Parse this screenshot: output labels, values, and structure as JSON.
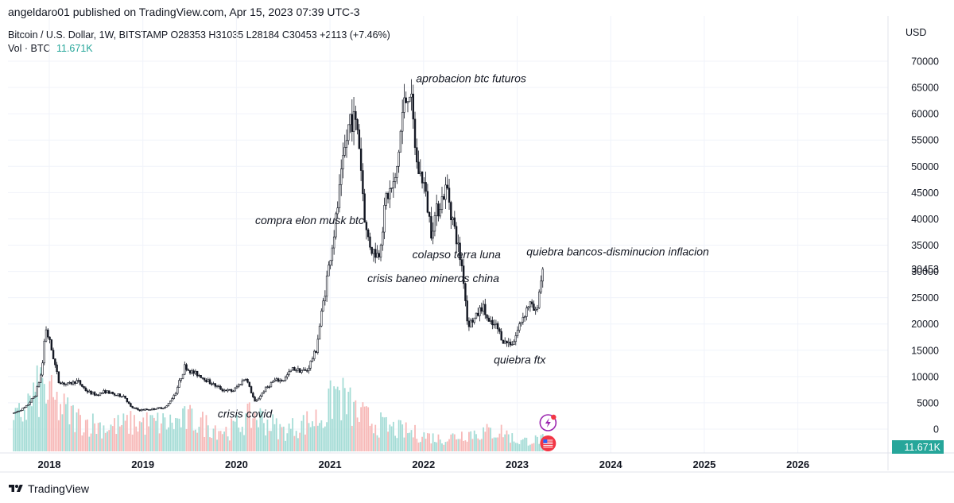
{
  "header": {
    "publisher": "angeldaro01 published on TradingView.com, Apr 15, 2023 07:39 UTC-3",
    "symbol_line": "Bitcoin / U.S. Dollar, 1W, BITSTAMP  O28353  H31035  L28184  C30453  +2113 (+7.46%)",
    "volume_label": "Vol · BTC",
    "volume_value": "11.671K"
  },
  "price_axis": {
    "currency": "USD"
  },
  "footer": {
    "brand": "TradingView"
  },
  "colors": {
    "up": "#131722",
    "down": "#131722",
    "vol_up": "#a5dcd6",
    "vol_down": "#f7b9b8",
    "vol_badge": "#26a69a",
    "grid": "#f0f3fa"
  },
  "icons": [
    "lightning-icon",
    "us-flag-icon"
  ],
  "chart_data": {
    "type": "candlestick",
    "x_ticks": [
      "2018",
      "2019",
      "2020",
      "2021",
      "2022",
      "2023",
      "2024",
      "2025",
      "2026"
    ],
    "y_ticks": [
      0,
      5000,
      10000,
      15000,
      20000,
      25000,
      30000,
      35000,
      40000,
      45000,
      50000,
      55000,
      60000,
      65000,
      70000
    ],
    "ylim": [
      0,
      70000
    ],
    "last_price": "30453",
    "last_volume": "11.671K",
    "price_path": [
      [
        2017.62,
        3000
      ],
      [
        2017.75,
        4200
      ],
      [
        2017.85,
        6500
      ],
      [
        2017.92,
        11000
      ],
      [
        2017.96,
        19500
      ],
      [
        2018.04,
        14000
      ],
      [
        2018.1,
        9000
      ],
      [
        2018.2,
        8500
      ],
      [
        2018.3,
        9200
      ],
      [
        2018.4,
        7200
      ],
      [
        2018.5,
        6500
      ],
      [
        2018.6,
        7200
      ],
      [
        2018.7,
        6500
      ],
      [
        2018.8,
        6300
      ],
      [
        2018.87,
        4200
      ],
      [
        2018.96,
        3600
      ],
      [
        2019.1,
        3800
      ],
      [
        2019.25,
        4200
      ],
      [
        2019.35,
        7000
      ],
      [
        2019.45,
        12000
      ],
      [
        2019.5,
        11000
      ],
      [
        2019.6,
        10300
      ],
      [
        2019.75,
        8500
      ],
      [
        2019.85,
        7500
      ],
      [
        2019.96,
        7200
      ],
      [
        2020.1,
        9800
      ],
      [
        2020.2,
        5000
      ],
      [
        2020.3,
        7500
      ],
      [
        2020.4,
        9200
      ],
      [
        2020.5,
        9300
      ],
      [
        2020.6,
        11500
      ],
      [
        2020.75,
        11000
      ],
      [
        2020.85,
        15000
      ],
      [
        2020.96,
        28000
      ],
      [
        2021.05,
        38000
      ],
      [
        2021.15,
        52000
      ],
      [
        2021.22,
        60000
      ],
      [
        2021.3,
        57000
      ],
      [
        2021.38,
        38000
      ],
      [
        2021.45,
        34000
      ],
      [
        2021.52,
        33000
      ],
      [
        2021.6,
        44000
      ],
      [
        2021.7,
        47000
      ],
      [
        2021.78,
        61000
      ],
      [
        2021.85,
        65000
      ],
      [
        2021.93,
        50000
      ],
      [
        2022.0,
        47000
      ],
      [
        2022.08,
        38000
      ],
      [
        2022.15,
        42000
      ],
      [
        2022.25,
        46000
      ],
      [
        2022.33,
        38000
      ],
      [
        2022.42,
        30000
      ],
      [
        2022.47,
        20000
      ],
      [
        2022.55,
        21000
      ],
      [
        2022.63,
        23500
      ],
      [
        2022.7,
        20000
      ],
      [
        2022.78,
        19500
      ],
      [
        2022.86,
        16500
      ],
      [
        2022.96,
        16500
      ],
      [
        2023.05,
        21000
      ],
      [
        2023.13,
        24000
      ],
      [
        2023.2,
        22000
      ],
      [
        2023.25,
        28000
      ],
      [
        2023.29,
        30453
      ]
    ],
    "volume_path": [
      [
        2017.62,
        0.7
      ],
      [
        2017.92,
        1.6
      ],
      [
        2018.05,
        1.2
      ],
      [
        2018.3,
        0.8
      ],
      [
        2018.6,
        0.6
      ],
      [
        2018.9,
        0.7
      ],
      [
        2019.3,
        0.7
      ],
      [
        2019.5,
        0.8
      ],
      [
        2019.9,
        0.5
      ],
      [
        2020.2,
        0.9
      ],
      [
        2020.5,
        0.5
      ],
      [
        2020.96,
        0.9
      ],
      [
        2021.05,
        1.5
      ],
      [
        2021.3,
        0.9
      ],
      [
        2021.6,
        0.6
      ],
      [
        2021.9,
        0.45
      ],
      [
        2022.2,
        0.3
      ],
      [
        2022.45,
        0.45
      ],
      [
        2022.85,
        0.5
      ],
      [
        2023.0,
        0.25
      ],
      [
        2023.29,
        0.3
      ]
    ],
    "annotations": [
      {
        "text": "aprobacion btc futuros",
        "x": 2021.92,
        "y": 66000
      },
      {
        "text": "compra elon musk btc",
        "x": 2020.2,
        "y": 39000
      },
      {
        "text": "colapso terra luna",
        "x": 2021.88,
        "y": 32500
      },
      {
        "text": "quiebra bancos-disminucion inflacion",
        "x": 2023.1,
        "y": 33000
      },
      {
        "text": "crisis baneo mineros china",
        "x": 2021.4,
        "y": 28000
      },
      {
        "text": "quiebra ftx",
        "x": 2022.75,
        "y": 12500
      },
      {
        "text": "crisis covid",
        "x": 2019.8,
        "y": 2200
      }
    ]
  }
}
